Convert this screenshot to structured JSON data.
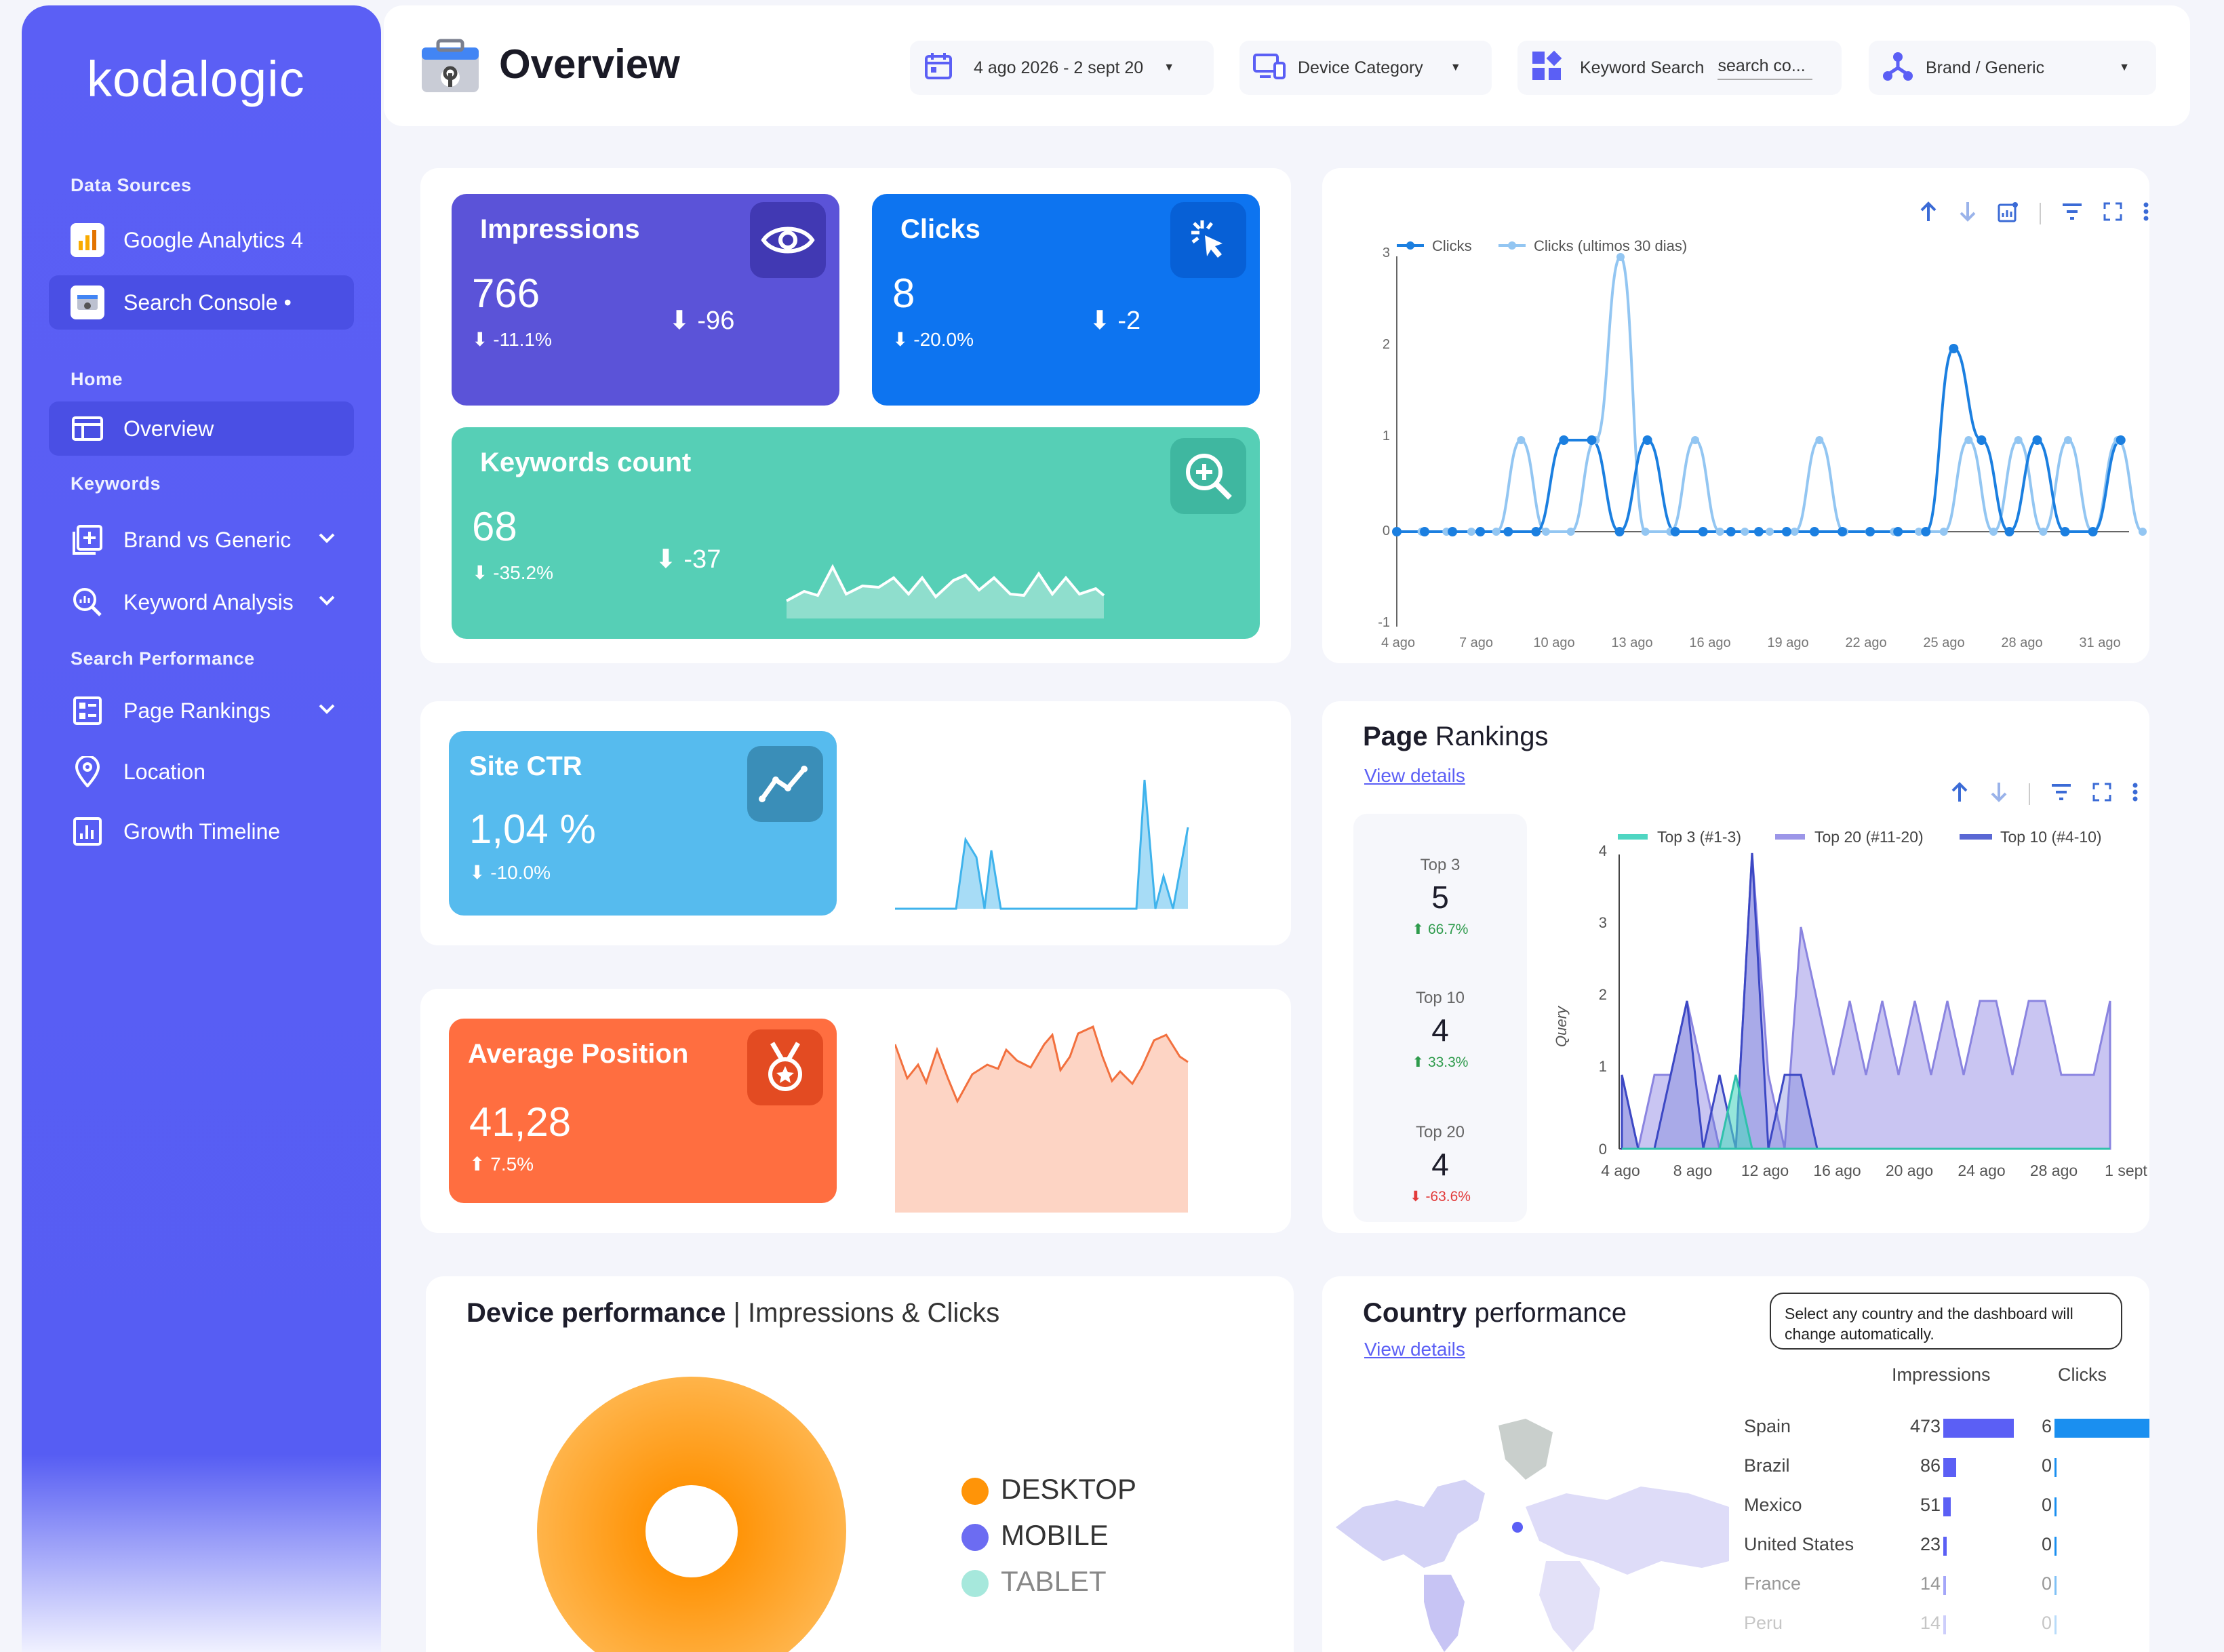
{
  "sidebar": {
    "logo": "kodalogic",
    "sections": {
      "data_sources": "Data Sources",
      "home": "Home",
      "keywords": "Keywords",
      "search_performance": "Search Performance"
    },
    "items": {
      "ga4": "Google Analytics 4",
      "gsc": "Search Console •",
      "overview": "Overview",
      "brand": "Brand vs Generic",
      "keyword_analysis": "Keyword Analysis",
      "page_rankings": "Page Rankings",
      "location": "Location",
      "growth": "Growth Timeline"
    }
  },
  "header": {
    "title": "Overview",
    "date_range": "4 ago 2026 - 2 sept 20",
    "device_category": "Device Category",
    "keyword_search_label": "Keyword Search",
    "keyword_search_placeholder": "search co...",
    "brand_generic": "Brand / Generic"
  },
  "kpis": {
    "impressions": {
      "label": "Impressions",
      "value": "766",
      "change": "-11.1%",
      "delta": "-96",
      "color": "#5b53d8"
    },
    "clicks": {
      "label": "Clicks",
      "value": "8",
      "change": "-20.0%",
      "delta": "-2",
      "color": "#0d74f0"
    },
    "keywords": {
      "label": "Keywords count",
      "value": "68",
      "change": "-35.2%",
      "delta": "-37",
      "color": "#56cfb6"
    },
    "ctr": {
      "label": "Site CTR",
      "value": "1,04 %",
      "change": "-10.0%",
      "color": "#56bbee"
    },
    "position": {
      "label": "Average Position",
      "value": "41,28",
      "change": "7.5%",
      "color": "#ff6e40"
    }
  },
  "clicks_chart": {
    "legend_a": "Clicks",
    "legend_b": "Clicks (ultimos 30 dias)",
    "y_ticks": [
      "3",
      "2",
      "1",
      "0",
      "-1"
    ],
    "x_ticks": [
      "4 ago",
      "7 ago",
      "10 ago",
      "13 ago",
      "16 ago",
      "19 ago",
      "22 ago",
      "25 ago",
      "28 ago",
      "31 ago"
    ]
  },
  "page_rankings": {
    "title_bold": "Page",
    "title_rest": " Rankings",
    "link": "View details",
    "top3": {
      "label": "Top 3",
      "value": "5",
      "change": "66.7%"
    },
    "top10": {
      "label": "Top 10",
      "value": "4",
      "change": "33.3%"
    },
    "top20": {
      "label": "Top 20",
      "value": "4",
      "change": "-63.6%"
    },
    "legend": [
      "Top 3 (#1-3)",
      "Top 20 (#11-20)",
      "Top 10 (#4-10)"
    ],
    "y_title": "Query",
    "y_ticks": [
      "4",
      "3",
      "2",
      "1",
      "0"
    ],
    "x_ticks": [
      "4 ago",
      "8 ago",
      "12 ago",
      "16 ago",
      "20 ago",
      "24 ago",
      "28 ago",
      "1 sept"
    ]
  },
  "device": {
    "title_bold": "Device performance",
    "title_rest": " | Impressions & Clicks",
    "legend": [
      "DESKTOP",
      "MOBILE",
      "TABLET"
    ],
    "colors": [
      "#ff9408",
      "#6c6cf2",
      "#a6e8dc"
    ]
  },
  "country": {
    "title_bold": "Country",
    "title_rest": " performance",
    "link": "View details",
    "note": "Select any country and the dashboard will change automatically.",
    "col_impressions": "Impressions",
    "col_clicks": "Clicks",
    "rows": [
      {
        "name": "Spain",
        "impressions": "473",
        "clicks": "6"
      },
      {
        "name": "Brazil",
        "impressions": "86",
        "clicks": "0"
      },
      {
        "name": "Mexico",
        "impressions": "51",
        "clicks": "0"
      },
      {
        "name": "United States",
        "impressions": "23",
        "clicks": "0"
      },
      {
        "name": "France",
        "impressions": "14",
        "clicks": "0"
      },
      {
        "name": "Peru",
        "impressions": "14",
        "clicks": "0"
      }
    ]
  }
}
